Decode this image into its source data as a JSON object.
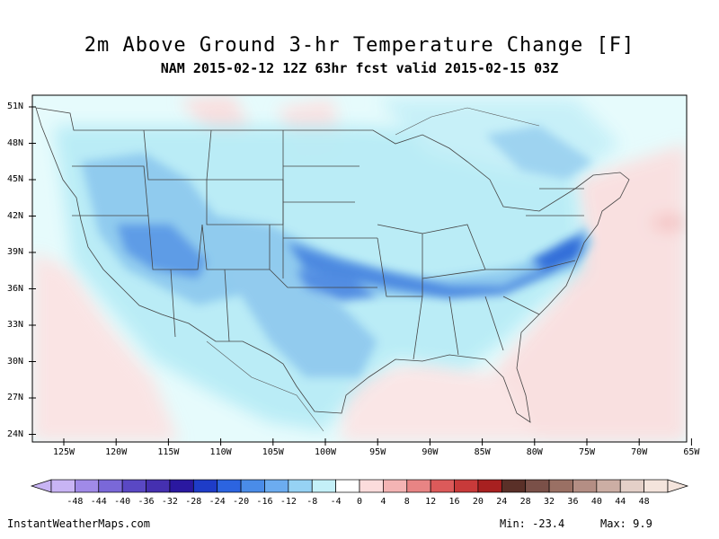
{
  "title": "2m Above Ground 3-hr Temperature Change [F]",
  "subtitle": "NAM 2015-02-12 12Z 63hr fcst valid 2015-02-15 03Z",
  "map": {
    "lat_labels": [
      "51N",
      "48N",
      "45N",
      "42N",
      "39N",
      "36N",
      "33N",
      "30N",
      "27N",
      "24N"
    ],
    "lon_labels": [
      "125W",
      "120W",
      "115W",
      "110W",
      "105W",
      "100W",
      "95W",
      "90W",
      "85W",
      "80W",
      "75W",
      "70W",
      "65W"
    ]
  },
  "colorbar": {
    "labels": [
      "-48",
      "-44",
      "-40",
      "-36",
      "-32",
      "-28",
      "-24",
      "-20",
      "-16",
      "-12",
      "-8",
      "-4",
      "0",
      "4",
      "8",
      "12",
      "16",
      "20",
      "24",
      "28",
      "32",
      "36",
      "40",
      "44",
      "48"
    ],
    "colors": [
      "#c8b4f4",
      "#a08ae8",
      "#7a68d8",
      "#5a48c4",
      "#4530b0",
      "#2a18a0",
      "#1e3cc8",
      "#2c64e0",
      "#4a8ce8",
      "#6cacf0",
      "#96d2f4",
      "#c4f0f8",
      "#ffffff",
      "#fcdcdc",
      "#f4b4b4",
      "#e88484",
      "#dc5a5a",
      "#c83a3a",
      "#a82020",
      "#5a3028",
      "#7a5048",
      "#9a7064",
      "#b48e84",
      "#ccae a4",
      "#e4d0c8",
      "#f4e4dc"
    ]
  },
  "footer": {
    "site": "InstantWeatherMaps.com",
    "min": "Min: -23.4",
    "max": "Max:  9.9"
  }
}
